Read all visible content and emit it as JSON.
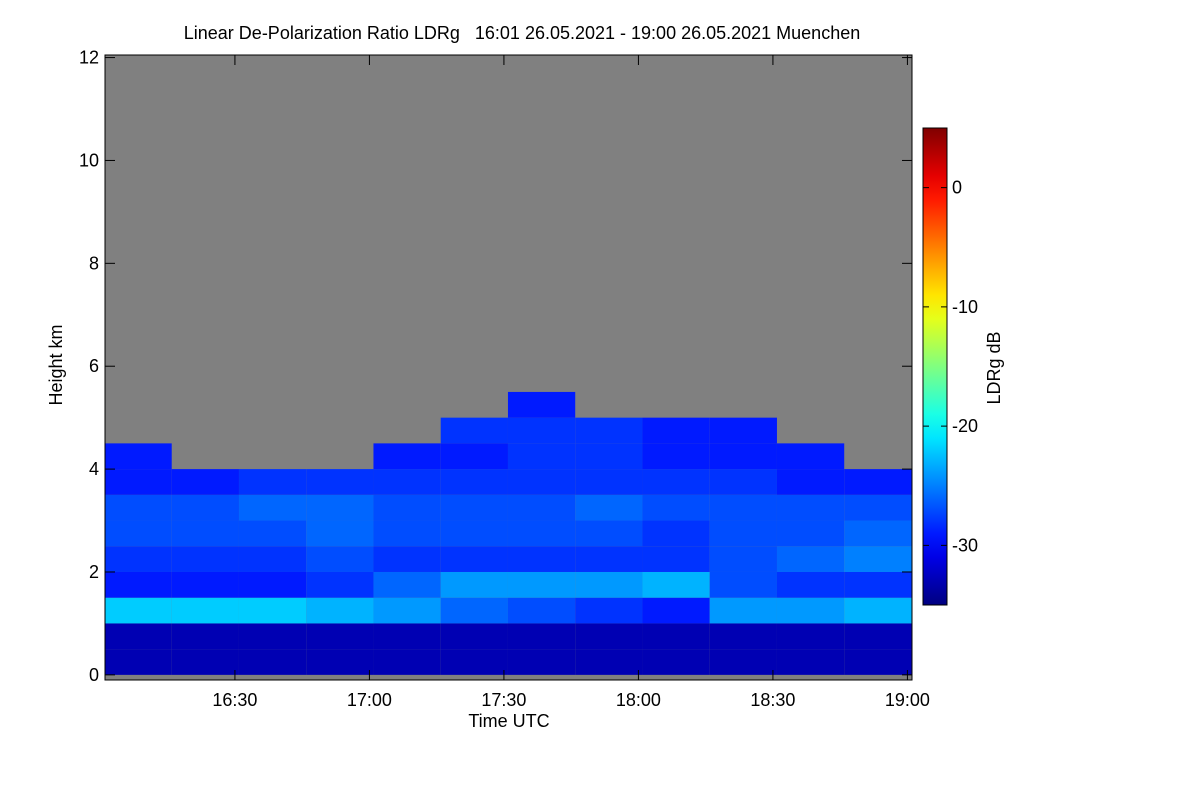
{
  "chart_data": {
    "type": "heatmap",
    "title": "Linear De-Polarization Ratio LDRg   16:01 26.05.2021 - 19:00 26.05.2021 Muenchen",
    "x_label": "Time UTC",
    "y_label": "Height km",
    "colorbar_label": "LDRg dB",
    "xlim": [
      16.017,
      19.017
    ],
    "xticks": [
      {
        "value": 16.5,
        "label": "16:30"
      },
      {
        "value": 17,
        "label": "17:00"
      },
      {
        "value": 17.5,
        "label": "17:30"
      },
      {
        "value": 18,
        "label": "18:00"
      },
      {
        "value": 18.5,
        "label": "18:30"
      },
      {
        "value": 19,
        "label": "19:00"
      }
    ],
    "ylim": [
      -0.1,
      12.05
    ],
    "yticks": [
      0,
      2,
      4,
      6,
      8,
      10,
      12
    ],
    "zlim": [
      -35,
      5
    ],
    "zticks": [
      0,
      -10,
      -20,
      -30
    ],
    "colormap": "jet",
    "nodata_color": "#808080",
    "x": [
      16.14,
      16.39,
      16.64,
      16.89,
      17.14,
      17.39,
      17.64,
      17.89,
      18.14,
      18.39,
      18.64,
      18.89
    ],
    "y": [
      0.25,
      0.75,
      1.25,
      1.75,
      2.25,
      2.75,
      3.25,
      3.75,
      4.25,
      4.75,
      5.25
    ],
    "values": [
      [
        -33,
        -33,
        -33,
        -33,
        -33,
        -33,
        -33,
        -33,
        -33,
        -33,
        -33,
        -33
      ],
      [
        -33,
        -33,
        -33,
        -33,
        -33,
        -33,
        -33,
        -33,
        -33,
        -33,
        -33,
        -33
      ],
      [
        -22,
        -22,
        -22,
        -23,
        -24,
        -26,
        -27,
        -28,
        -29,
        -24,
        -24,
        -23
      ],
      [
        -29,
        -29,
        -29,
        -28,
        -26,
        -24,
        -24,
        -24,
        -23,
        -27,
        -28,
        -28
      ],
      [
        -28,
        -28,
        -28,
        -27,
        -28,
        -28,
        -28,
        -28,
        -28,
        -27,
        -26,
        -25
      ],
      [
        -27,
        -27,
        -27,
        -26,
        -27,
        -27,
        -27,
        -27,
        -28,
        -27,
        -27,
        -26
      ],
      [
        -27,
        -27,
        -26,
        -26,
        -27,
        -27,
        -27,
        -26,
        -27,
        -27,
        -27,
        -27
      ],
      [
        -29,
        -29,
        -28,
        -28,
        -28,
        -28,
        -28,
        -28,
        -28,
        -28,
        -29,
        -29
      ],
      [
        -29,
        null,
        null,
        null,
        -29,
        -29,
        -28,
        -28,
        -29,
        -29,
        -29,
        null
      ],
      [
        null,
        null,
        null,
        null,
        null,
        -28,
        -28,
        -28,
        -29,
        -29,
        null,
        null
      ],
      [
        null,
        null,
        null,
        null,
        null,
        null,
        -29,
        null,
        null,
        null,
        null,
        null
      ]
    ]
  }
}
